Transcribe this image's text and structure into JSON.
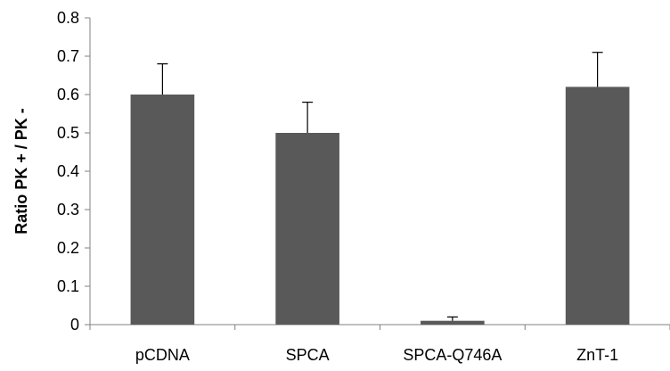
{
  "chart_data": {
    "type": "bar",
    "title": "",
    "xlabel": "",
    "ylabel": "Ratio PK + / PK -",
    "categories": [
      "pCDNA",
      "SPCA",
      "SPCA-Q746A",
      "ZnT-1"
    ],
    "values": [
      0.6,
      0.5,
      0.01,
      0.62
    ],
    "error_plus": [
      0.08,
      0.08,
      0.01,
      0.09
    ],
    "ylim": [
      0,
      0.8
    ],
    "yticks": [
      0,
      0.1,
      0.2,
      0.3,
      0.4,
      0.5,
      0.6,
      0.7,
      0.8
    ],
    "ytick_labels": [
      "0",
      "0.1",
      "0.2",
      "0.3",
      "0.4",
      "0.5",
      "0.6",
      "0.7",
      "0.8"
    ],
    "bar_color": "#595959",
    "grid": false,
    "legend": "none"
  }
}
